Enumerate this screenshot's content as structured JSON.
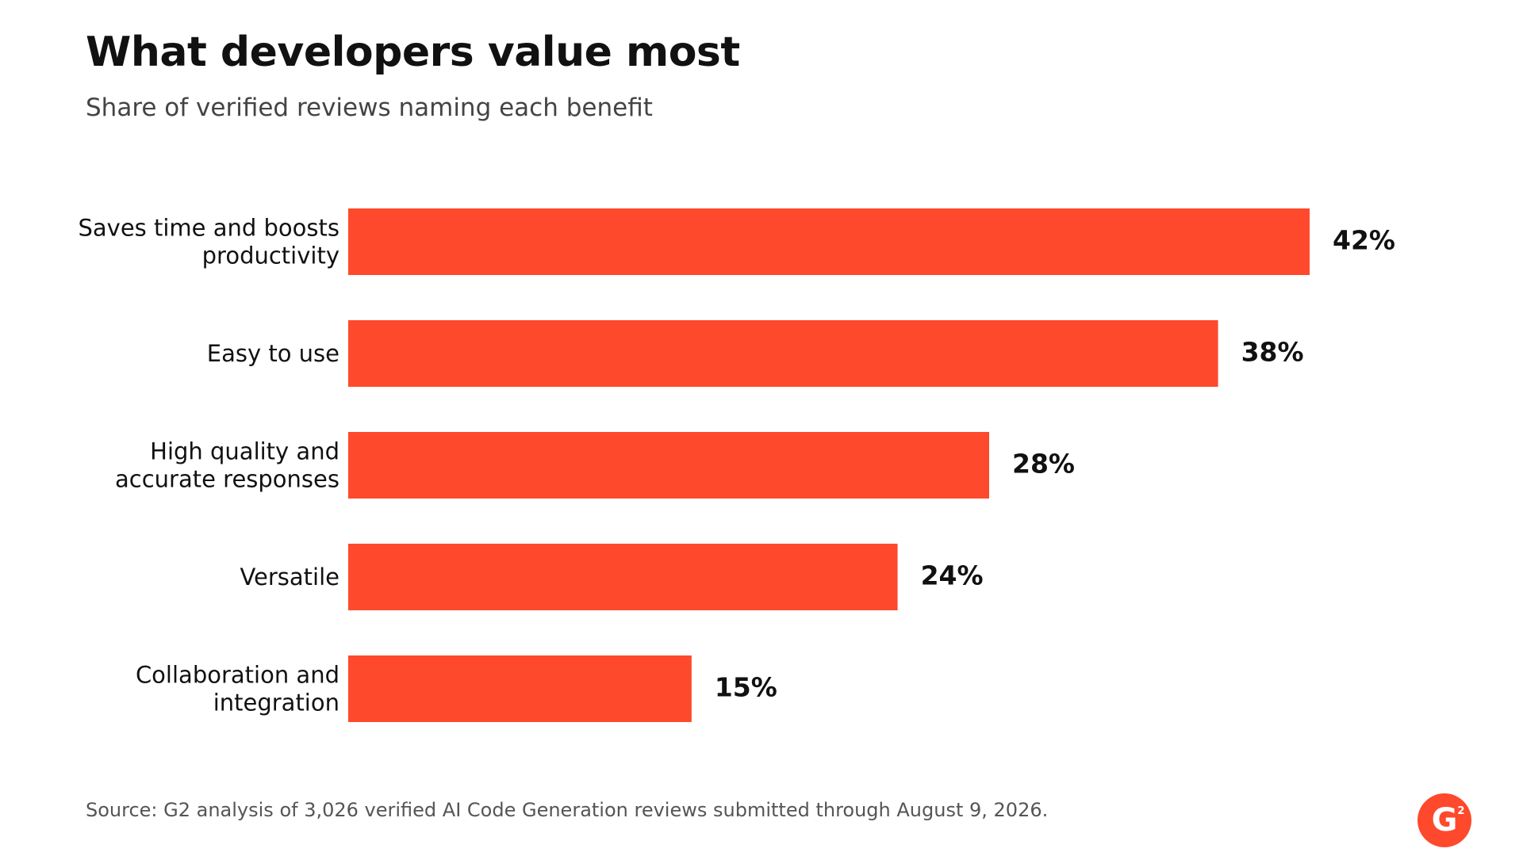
{
  "header": {
    "title": "What developers value most",
    "subtitle": "Share of verified reviews naming each benefit"
  },
  "chart_data": {
    "type": "bar",
    "orientation": "horizontal",
    "categories": [
      [
        "Saves time and boosts",
        "productivity"
      ],
      [
        "Easy to use"
      ],
      [
        "High quality and",
        "accurate responses"
      ],
      [
        "Versatile"
      ],
      [
        "Collaboration and",
        "integration"
      ]
    ],
    "values": [
      42,
      38,
      28,
      24,
      15
    ],
    "value_labels": [
      "42%",
      "38%",
      "28%",
      "24%",
      "15%"
    ],
    "unit": "%",
    "xlim": [
      0,
      42
    ],
    "bar_color": "#ff492c",
    "grid": false,
    "legend": "none"
  },
  "footer": {
    "source": "Source: G2 analysis of 3,026 verified AI Code Generation reviews submitted through August 9, 2026.",
    "logo_text": "G",
    "logo_superscript": "2",
    "logo_color": "#ff492c"
  }
}
